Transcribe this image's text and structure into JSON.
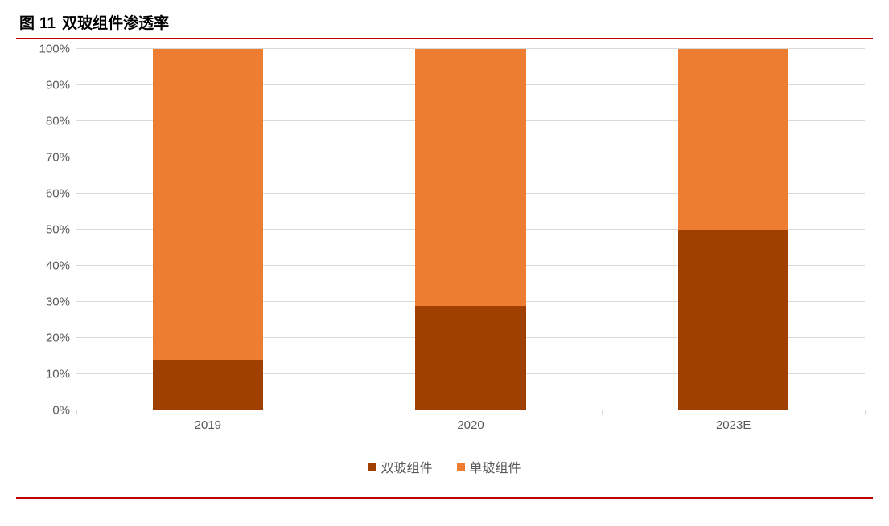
{
  "title": {
    "prefix": "图",
    "number": "11",
    "text": "双玻组件渗透率",
    "fontsize": 19,
    "font_weight": "bold",
    "color": "#000000"
  },
  "rule_color": "#c00000",
  "chart": {
    "type": "stacked-bar-100",
    "categories": [
      "2019",
      "2020",
      "2023E"
    ],
    "series": [
      {
        "name": "双玻组件",
        "color": "#a04000",
        "values": [
          14,
          29,
          50
        ]
      },
      {
        "name": "单玻组件",
        "color": "#ed7d31",
        "values": [
          86,
          71,
          50
        ]
      }
    ],
    "ylim": [
      0,
      100
    ],
    "ytick_step": 10,
    "ytick_suffix": "%",
    "bar_width_pct": 14,
    "background_color": "#ffffff",
    "grid_color": "#d9d9d9",
    "axis_label_color": "#595959",
    "axis_label_fontsize": 15,
    "legend_fontsize": 16,
    "legend_position": "bottom-center"
  }
}
